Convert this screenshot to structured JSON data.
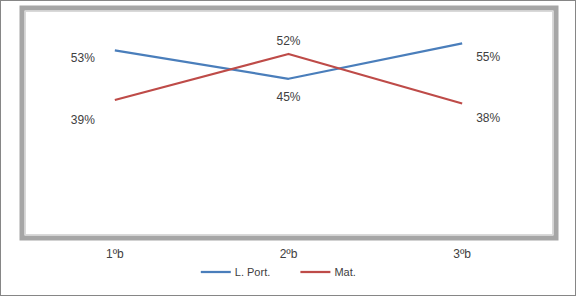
{
  "chart_data": {
    "type": "line",
    "categories": [
      "1ºb",
      "2ºb",
      "3ºb"
    ],
    "series": [
      {
        "name": "L. Port.",
        "color": "#4a7ebb",
        "values": [
          53,
          45,
          55
        ],
        "value_labels": [
          "53%",
          "45%",
          "55%"
        ]
      },
      {
        "name": "Mat.",
        "color": "#be4b48",
        "values": [
          39,
          52,
          38
        ],
        "value_labels": [
          "39%",
          "52%",
          "38%"
        ]
      }
    ],
    "ylim": [
      0,
      65
    ],
    "tick_labels": "x",
    "data_labels": true,
    "legend": "bottom"
  }
}
